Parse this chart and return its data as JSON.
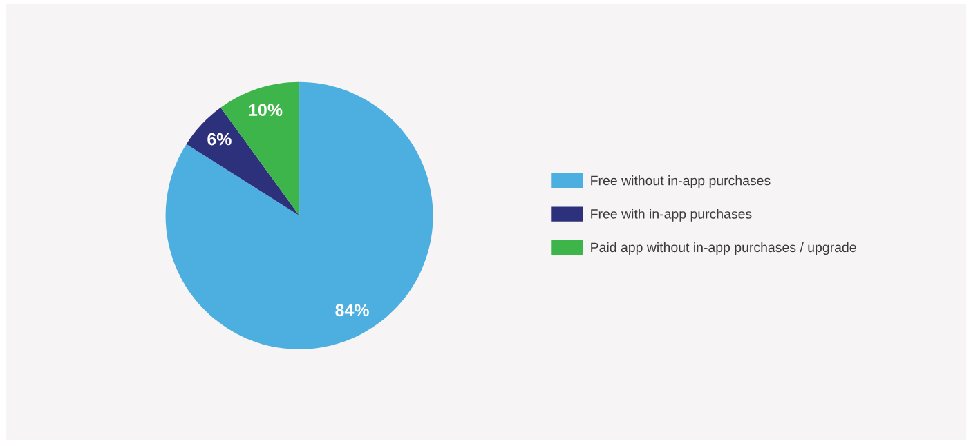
{
  "chart_data": {
    "type": "pie",
    "categories": [
      "Free without in-app purchases",
      "Free with in-app purchases",
      "Paid app without in-app purchases / upgrade"
    ],
    "values": [
      84,
      6,
      10
    ],
    "colors": [
      "#4daee0",
      "#2d317c",
      "#3db54a"
    ],
    "value_labels": [
      "84%",
      "6%",
      "10%"
    ],
    "legend": "right"
  }
}
